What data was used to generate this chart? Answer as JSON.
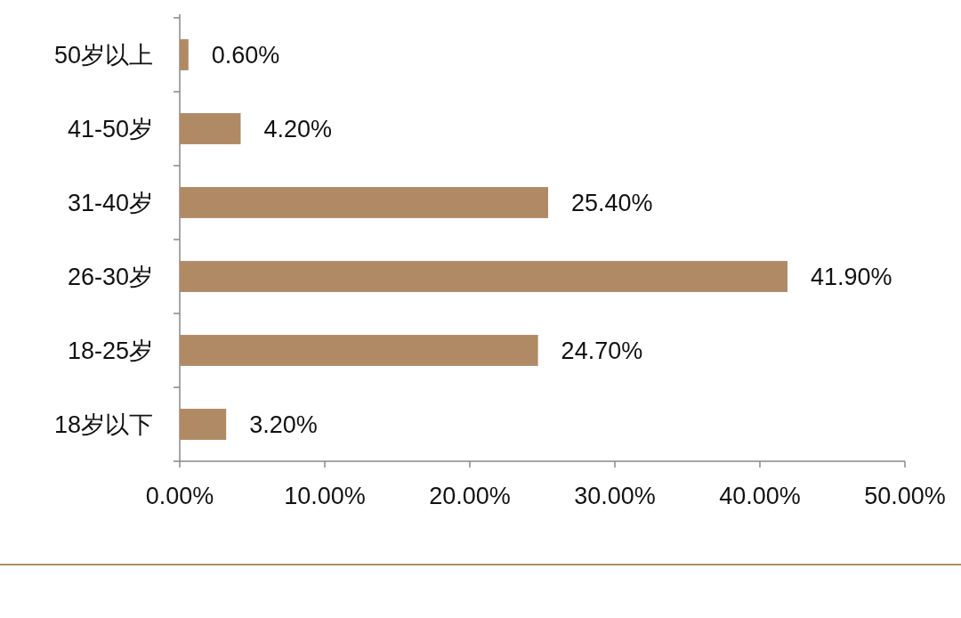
{
  "chart_data": {
    "type": "bar",
    "orientation": "horizontal",
    "categories": [
      "50岁以上",
      "41-50岁",
      "31-40岁",
      "26-30岁",
      "18-25岁",
      "18岁以下"
    ],
    "values": [
      0.6,
      4.2,
      25.4,
      41.9,
      24.7,
      3.2
    ],
    "value_labels": [
      "0.60%",
      "4.20%",
      "25.40%",
      "41.90%",
      "24.70%",
      "3.20%"
    ],
    "color": "#b08a64",
    "xlim": [
      0,
      50
    ],
    "xticks": [
      {
        "value": 0,
        "label": "0.00%"
      },
      {
        "value": 10,
        "label": "10.00%"
      },
      {
        "value": 20,
        "label": "20.00%"
      },
      {
        "value": 30,
        "label": "30.00%"
      },
      {
        "value": 40,
        "label": "40.00%"
      },
      {
        "value": 50,
        "label": "50.00%"
      }
    ],
    "grid": false
  }
}
